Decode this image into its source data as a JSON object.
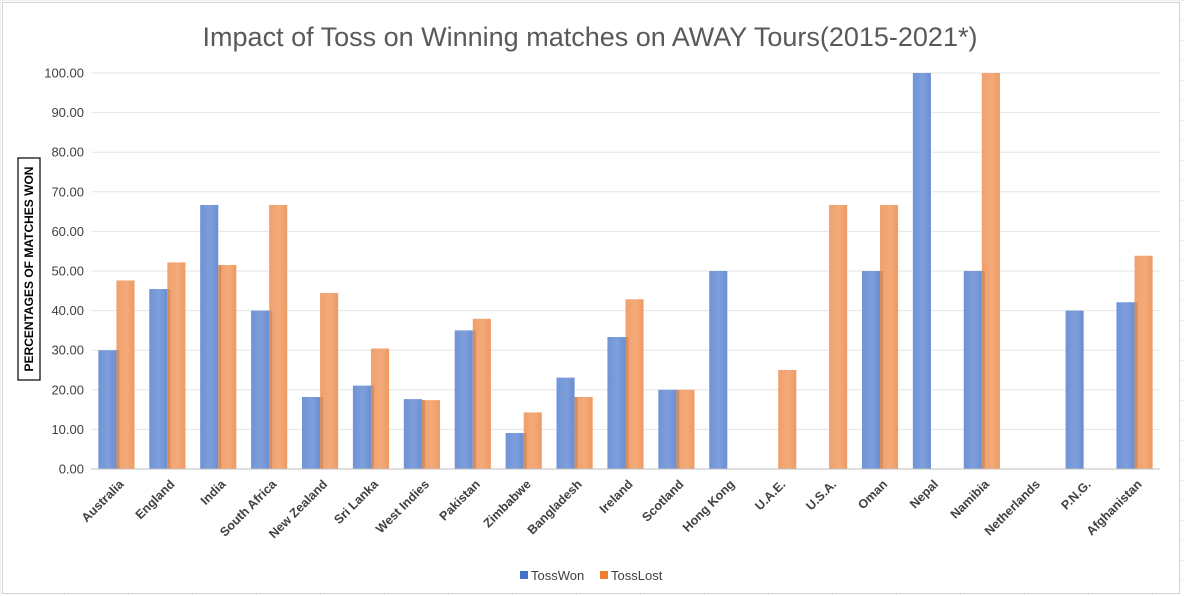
{
  "chart_data": {
    "type": "bar",
    "title": "Impact of Toss on Winning matches on AWAY Tours(2015-2021*)",
    "xlabel": "",
    "ylabel": "PERCENTAGES OF MATCHES WON",
    "ylim": [
      0,
      100
    ],
    "ytick_step": 10,
    "ytick_decimals": 2,
    "grid": true,
    "legend_position": "bottom",
    "categories": [
      "Australia",
      "England",
      "India",
      "South Africa",
      "New Zealand",
      "Sri Lanka",
      "West Indies",
      "Pakistan",
      "Zimbabwe",
      "Bangladesh",
      "Ireland",
      "Scotland",
      "Hong Kong",
      "U.A.E.",
      "U.S.A.",
      "Oman",
      "Nepal",
      "Namibia",
      "Netherlands",
      "P.N.G.",
      "Afghanistan"
    ],
    "series": [
      {
        "name": "TossWon",
        "color": "#4472C4",
        "values": [
          30.0,
          45.45,
          66.67,
          40.0,
          18.18,
          21.05,
          17.65,
          35.0,
          9.09,
          23.08,
          33.33,
          20.0,
          50.0,
          0,
          0,
          50.0,
          100.0,
          50.0,
          0,
          40.0,
          42.11
        ]
      },
      {
        "name": "TossLost",
        "color": "#ED7D31",
        "values": [
          47.62,
          52.17,
          51.52,
          66.67,
          44.44,
          30.43,
          17.39,
          37.93,
          14.29,
          18.18,
          42.86,
          20.0,
          0,
          25.0,
          66.67,
          66.67,
          0,
          100.0,
          0,
          0,
          53.85
        ]
      }
    ]
  }
}
